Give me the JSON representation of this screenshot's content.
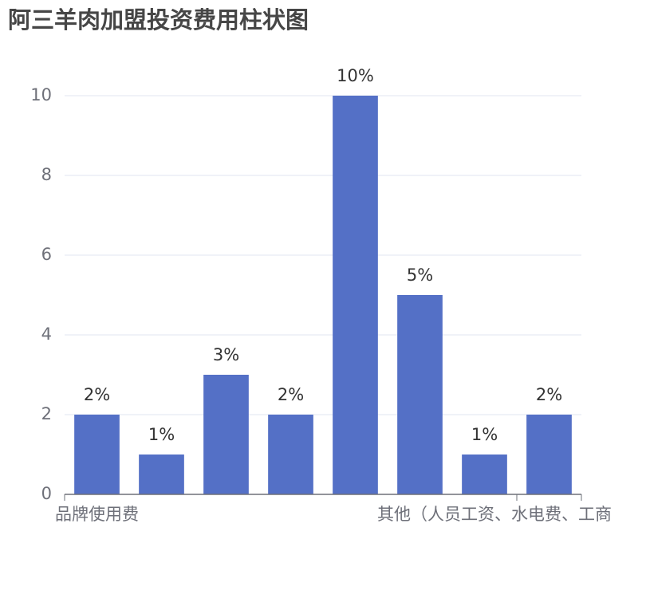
{
  "chart_data": {
    "type": "bar",
    "title": "阿三羊肉加盟投资费用柱状图",
    "categories": [
      "品牌使用费",
      null,
      null,
      null,
      null,
      null,
      null,
      "其他（人员工资、水电费、工商"
    ],
    "values": [
      2,
      1,
      3,
      2,
      10,
      5,
      1,
      2
    ],
    "value_labels": [
      "2%",
      "1%",
      "3%",
      "2%",
      "10%",
      "5%",
      "1%",
      "2%"
    ],
    "color": "#5470c6",
    "ylim": [
      0,
      10
    ],
    "yticks": [
      0,
      2,
      4,
      6,
      8,
      10
    ],
    "grid": true
  }
}
